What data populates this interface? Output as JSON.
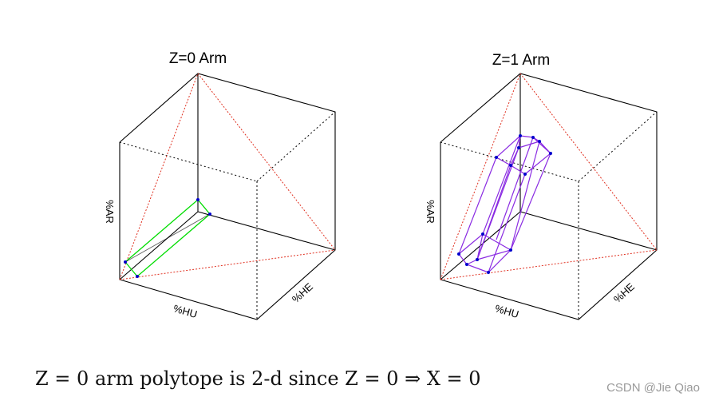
{
  "panels": [
    {
      "title": "Z=0 Arm",
      "axes": {
        "vertical": "%AR",
        "front": "%HU",
        "side": "%HE"
      }
    },
    {
      "title": "Z=1 Arm",
      "axes": {
        "vertical": "%AR",
        "front": "%HU",
        "side": "%HE"
      }
    }
  ],
  "caption": "Z = 0 arm polytope is 2-d since Z = 0  ⇒  X = 0",
  "watermark": "CSDN @Jie Qiao",
  "colors": {
    "cube_edges": "#000000",
    "simplex_edges": "#e03020",
    "z0_polytope": "#00dd00",
    "z1_polytope": "#8a2be2",
    "vertex_points": "#0000cc"
  }
}
